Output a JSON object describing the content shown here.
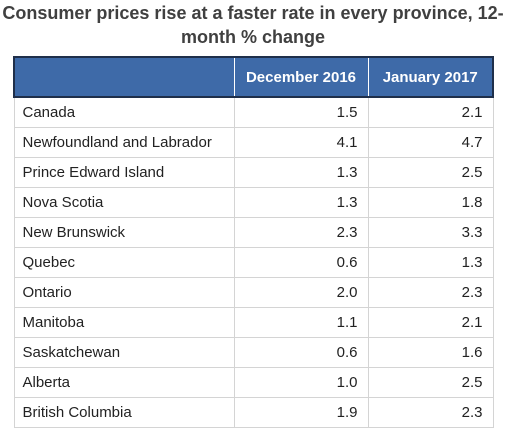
{
  "title": "Consumer prices rise at a faster rate in every province, 12-month % change",
  "chart_data": {
    "type": "table",
    "title": "Consumer prices rise at a faster rate in every province, 12-month % change",
    "columns": [
      "",
      "December 2016",
      "January 2017"
    ],
    "rows": [
      {
        "province": "Canada",
        "dec_2016": "1.5",
        "jan_2017": "2.1"
      },
      {
        "province": "Newfoundland and Labrador",
        "dec_2016": "4.1",
        "jan_2017": "4.7"
      },
      {
        "province": "Prince Edward Island",
        "dec_2016": "1.3",
        "jan_2017": "2.5"
      },
      {
        "province": "Nova Scotia",
        "dec_2016": "1.3",
        "jan_2017": "1.8"
      },
      {
        "province": "New Brunswick",
        "dec_2016": "2.3",
        "jan_2017": "3.3"
      },
      {
        "province": "Quebec",
        "dec_2016": "0.6",
        "jan_2017": "1.3"
      },
      {
        "province": "Ontario",
        "dec_2016": "2.0",
        "jan_2017": "2.3"
      },
      {
        "province": "Manitoba",
        "dec_2016": "1.1",
        "jan_2017": "2.1"
      },
      {
        "province": "Saskatchewan",
        "dec_2016": "0.6",
        "jan_2017": "1.6"
      },
      {
        "province": "Alberta",
        "dec_2016": "1.0",
        "jan_2017": "2.5"
      },
      {
        "province": "British Columbia",
        "dec_2016": "1.9",
        "jan_2017": "2.3"
      }
    ]
  },
  "colors": {
    "header_bg": "#3e6aa8",
    "header_text": "#ffffff",
    "title_text": "#404040",
    "cell_border": "#d4d4d4"
  }
}
